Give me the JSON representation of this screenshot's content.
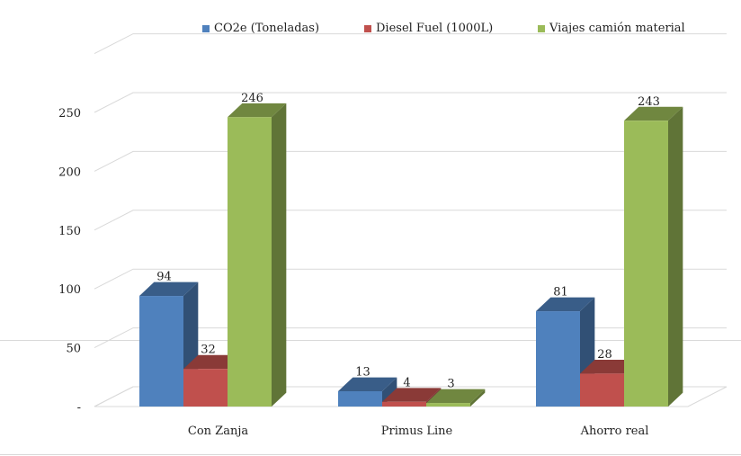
{
  "chart_data": {
    "type": "bar",
    "categories": [
      "Con Zanja",
      "Primus Line",
      "Ahorro real"
    ],
    "series": [
      {
        "name": "CO2e (Toneladas)",
        "values": [
          94,
          13,
          81
        ],
        "color": "#4F81BD"
      },
      {
        "name": "Diesel Fuel (1000L)",
        "values": [
          32,
          4,
          28
        ],
        "color": "#C0504D"
      },
      {
        "name": "Viajes camión material",
        "values": [
          246,
          3,
          243
        ],
        "color": "#9BBB59"
      }
    ],
    "ylim": [
      0,
      300
    ],
    "yticks": [
      "-",
      "50",
      "100",
      "150",
      "200",
      "250"
    ],
    "ytick_values": [
      0,
      50,
      100,
      150,
      200,
      250
    ],
    "grid": true,
    "legend_position": "top",
    "style": "3d-clustered-column",
    "title": "",
    "xlabel": "",
    "ylabel": ""
  }
}
